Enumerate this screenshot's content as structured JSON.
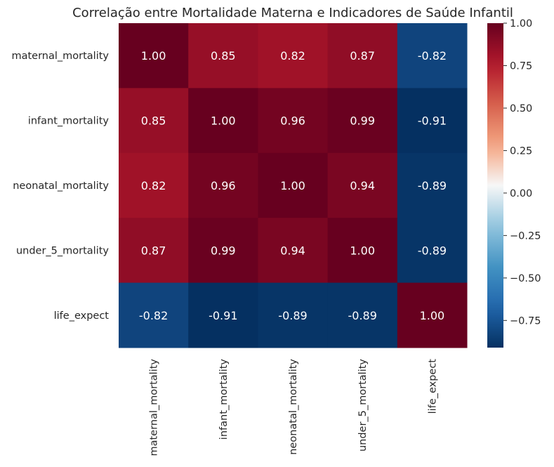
{
  "chart_data": {
    "type": "heatmap",
    "title": "Correlação entre Mortalidade Materna e Indicadores de Saúde Infantil",
    "row_labels": [
      "maternal_mortality",
      "infant_mortality",
      "neonatal_mortality",
      "under_5_mortality",
      "life_expect"
    ],
    "col_labels": [
      "maternal_mortality",
      "infant_mortality",
      "neonatal_mortality",
      "under_5_mortality",
      "life_expect"
    ],
    "values": [
      [
        1.0,
        0.85,
        0.82,
        0.87,
        -0.82
      ],
      [
        0.85,
        1.0,
        0.96,
        0.99,
        -0.91
      ],
      [
        0.82,
        0.96,
        1.0,
        0.94,
        -0.89
      ],
      [
        0.87,
        0.99,
        0.94,
        1.0,
        -0.89
      ],
      [
        -0.82,
        -0.91,
        -0.89,
        -0.89,
        1.0
      ]
    ],
    "value_labels": [
      [
        "1.00",
        "0.85",
        "0.82",
        "0.87",
        "-0.82"
      ],
      [
        "0.85",
        "1.00",
        "0.96",
        "0.99",
        "-0.91"
      ],
      [
        "0.82",
        "0.96",
        "1.00",
        "0.94",
        "-0.89"
      ],
      [
        "0.87",
        "0.99",
        "0.94",
        "1.00",
        "-0.89"
      ],
      [
        "-0.82",
        "-0.91",
        "-0.89",
        "-0.89",
        "1.00"
      ]
    ],
    "colormap": "RdBu_r",
    "vmin": -0.91,
    "vmax": 1.0,
    "colorbar_ticks": [
      1.0,
      0.75,
      0.5,
      0.25,
      0.0,
      -0.25,
      -0.5,
      -0.75
    ],
    "colorbar_tick_labels": [
      "1.00",
      "0.75",
      "0.50",
      "0.25",
      "0.00",
      "−0.25",
      "−0.50",
      "−0.75"
    ],
    "annotation_color_dark": "#ffffff",
    "annotation_color_light": "#262626"
  }
}
